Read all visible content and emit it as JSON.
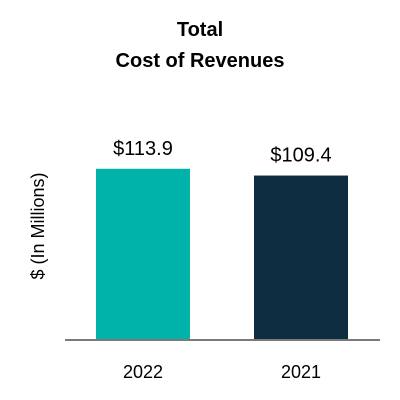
{
  "chart_data": {
    "type": "bar",
    "title_lines": [
      "Total",
      "Cost of Revenues"
    ],
    "ylabel": "$ (In Millions)",
    "xlabel": "",
    "categories": [
      "2022",
      "2021"
    ],
    "values": [
      113.9,
      109.4
    ],
    "value_labels": [
      "$113.9",
      "$109.4"
    ],
    "colors": [
      "#00B3AA",
      "#0F2D40"
    ],
    "ylim": [
      0,
      153
    ],
    "grid": false,
    "legend": "none"
  }
}
